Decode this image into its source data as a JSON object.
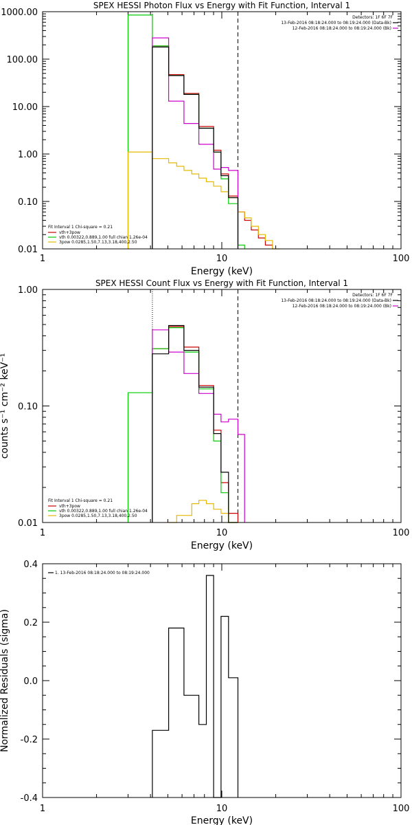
{
  "chart_data": [
    {
      "type": "line",
      "title": "SPEX HESSI Photon Flux vs Energy with Fit Function, Interval 1",
      "xlabel": "Energy (keV)",
      "ylabel": "",
      "xscale": "log",
      "yscale": "log",
      "xlim": [
        1,
        100
      ],
      "ylim": [
        0.01,
        1000
      ],
      "x_ticks": [
        "1",
        "10",
        "100"
      ],
      "y_ticks": [
        "0.01",
        "0.10",
        "1.00",
        "10.00",
        "100.00",
        "1000.00"
      ],
      "detectors_label": "Detectors: 1F 6F 7F",
      "legend_top": [
        {
          "label": "13-Feb-2016 08:18:24.000 to 08:19:24.000 (Data-Bk)",
          "color": "#000000"
        },
        {
          "label": "12-Feb-2016 08:18:24.000 to 08:19:24.000 (Bk)",
          "color": "#cc00cc"
        }
      ],
      "fit_header": "Fit Interval 1    Chi-square = 0.21",
      "legend_fit": [
        {
          "label": "vth+3pow",
          "color": "#cc0000"
        },
        {
          "label": "vth 0.00322,0.889,1.00  full chian 1.26e-04",
          "color": "#00cc00"
        },
        {
          "label": "3pow 0.0285,1.50,7.13,3.18,400,2.50",
          "color": "#e6b800"
        }
      ],
      "vlines": [
        {
          "x": 4.1,
          "style": "dotted"
        },
        {
          "x": 12.3,
          "style": "dashed"
        }
      ],
      "bin_edges": [
        3.0,
        3.4,
        4.1,
        4.6,
        5.05,
        5.6,
        6.15,
        6.8,
        7.45,
        8.2,
        9.0,
        9.9,
        10.9,
        12.3,
        13.4,
        14.6,
        16.0,
        17.5,
        19.2,
        21.0
      ],
      "series": [
        {
          "name": "Data-Bk",
          "color": "#000000",
          "start": 2,
          "values": [
            180,
            180,
            45,
            45,
            18,
            18,
            3.5,
            3.5,
            1.1,
            0.35,
            0.12
          ]
        },
        {
          "name": "vth+3pow",
          "color": "#cc0000",
          "start": 2,
          "values": [
            190,
            190,
            47,
            47,
            19,
            19,
            3.8,
            3.8,
            1.2,
            0.38,
            0.13,
            0.06,
            0.04,
            0.025,
            0.017,
            0.012
          ]
        },
        {
          "name": "vth",
          "color": "#00cc00",
          "start": 0,
          "values": [
            850,
            850,
            190,
            190,
            45,
            45,
            18,
            18,
            3.5,
            3.5,
            1.1,
            0.3,
            0.09,
            0.012
          ]
        },
        {
          "name": "3pow",
          "color": "#e6b800",
          "start": 0,
          "values": [
            1.1,
            1.1,
            0.8,
            0.8,
            0.65,
            0.55,
            0.45,
            0.38,
            0.31,
            0.26,
            0.21,
            0.16,
            0.12,
            0.06,
            0.045,
            0.03,
            0.02,
            0.015,
            0.01
          ]
        },
        {
          "name": "Bk",
          "color": "#cc00cc",
          "start": 2,
          "values": [
            280,
            280,
            13,
            13,
            4.4,
            4.4,
            1.6,
            1.6,
            0.48,
            0.52,
            0.45
          ]
        }
      ]
    },
    {
      "type": "line",
      "title": "SPEX HESSI Count Flux vs Energy with Fit Function, Interval 1",
      "xlabel": "Energy (keV)",
      "ylabel": "counts s⁻¹ cm⁻² keV⁻¹",
      "xscale": "log",
      "yscale": "log",
      "xlim": [
        1,
        100
      ],
      "ylim": [
        0.01,
        1.0
      ],
      "x_ticks": [
        "1",
        "10",
        "100"
      ],
      "y_ticks": [
        "0.01",
        "0.10",
        "1.00"
      ],
      "detectors_label": "Detectors: 1F 6F 7F",
      "legend_top": [
        {
          "label": "13-Feb-2016 08:18:24.000 to 08:19:24.000 (Data-Bk)",
          "color": "#000000"
        },
        {
          "label": "12-Feb-2016 08:18:24.000 to 08:19:24.000 (Bk)",
          "color": "#cc00cc"
        }
      ],
      "fit_header": "Fit Interval 1    Chi-square = 0.21",
      "legend_fit": [
        {
          "label": "vth+3pow",
          "color": "#cc0000"
        },
        {
          "label": "vth 0.00322,0.889,1.00  full chian 1.26e-04",
          "color": "#00cc00"
        },
        {
          "label": "3pow 0.0285,1.50,7.13,3.18,400,2.50",
          "color": "#e6b800"
        }
      ],
      "vlines": [
        {
          "x": 4.1,
          "style": "dotted"
        },
        {
          "x": 12.3,
          "style": "dashed"
        }
      ],
      "bin_edges": [
        3.0,
        3.4,
        4.1,
        4.6,
        5.05,
        5.6,
        6.15,
        6.8,
        7.45,
        8.2,
        9.0,
        9.9,
        10.9,
        12.3,
        13.4
      ],
      "series": [
        {
          "name": "Data-Bk",
          "color": "#000000",
          "start": 2,
          "values": [
            0.28,
            0.28,
            0.49,
            0.49,
            0.3,
            0.3,
            0.145,
            0.145,
            0.058,
            0.027,
            0.01
          ]
        },
        {
          "name": "vth+3pow",
          "color": "#cc0000",
          "start": 2,
          "values": [
            0.31,
            0.31,
            0.48,
            0.48,
            0.32,
            0.32,
            0.15,
            0.15,
            0.062,
            0.022,
            0.012
          ]
        },
        {
          "name": "vth",
          "color": "#00cc00",
          "start": 0,
          "values": [
            0.13,
            0.13,
            0.31,
            0.31,
            0.47,
            0.47,
            0.29,
            0.29,
            0.14,
            0.14,
            0.05,
            0.018,
            0.01
          ]
        },
        {
          "name": "3pow",
          "color": "#e6b800",
          "start": 4,
          "values": [
            0.009,
            0.0115,
            0.0115,
            0.0145,
            0.0155,
            0.0145,
            0.013,
            0.012,
            0.01
          ]
        },
        {
          "name": "Bk",
          "color": "#cc00cc",
          "start": 2,
          "values": [
            0.45,
            0.45,
            0.29,
            0.29,
            0.19,
            0.19,
            0.128,
            0.128,
            0.085,
            0.073,
            0.077,
            0.057
          ]
        }
      ]
    },
    {
      "type": "line",
      "title": "",
      "xlabel": "Energy (keV)",
      "ylabel": "Normalized Residuals (sigma)",
      "xscale": "log",
      "yscale": "linear",
      "xlim": [
        1,
        100
      ],
      "ylim": [
        -0.4,
        0.4
      ],
      "x_ticks": [
        "1",
        "10",
        "100"
      ],
      "y_ticks": [
        "-0.4",
        "-0.2",
        "0.0",
        "0.2",
        "0.4"
      ],
      "legend_top": [
        {
          "label": "1. 13-Feb-2016 08:18:24.000 to 08:19:24.000",
          "color": "#000000"
        }
      ],
      "bin_edges": [
        4.1,
        5.05,
        6.15,
        7.45,
        8.2,
        9.0,
        9.9,
        10.9,
        12.3
      ],
      "series": [
        {
          "name": "",
          "color": "#000000",
          "start": 0,
          "values": [
            -0.17,
            0.18,
            -0.05,
            -0.15,
            0.36,
            -0.4,
            0.22,
            0.01
          ]
        }
      ]
    }
  ]
}
